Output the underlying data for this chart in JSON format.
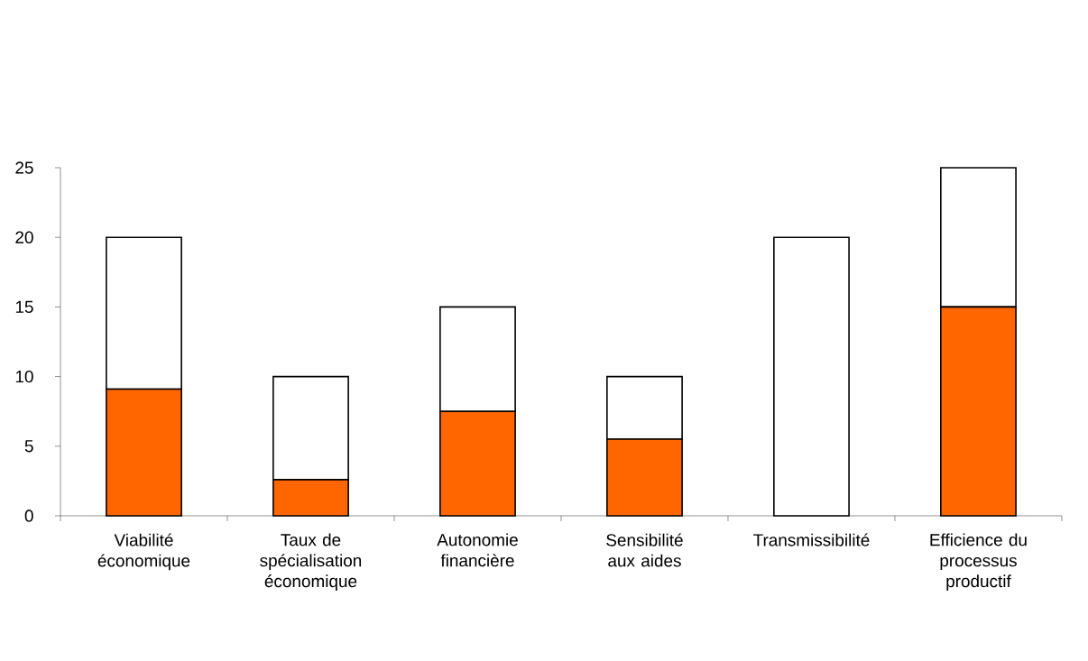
{
  "chart_data": {
    "type": "bar",
    "stacked": true,
    "categories": [
      "Viabilité économique",
      "Taux de spécialisation économique",
      "Autonomie financière",
      "Sensibilité aux aides",
      "Transmissibilité",
      "Efficience du processus productif"
    ],
    "series": [
      {
        "color": "#ff6600",
        "values": [
          9.1,
          2.6,
          7.5,
          5.5,
          0,
          15
        ]
      },
      {
        "color": "#ffffff",
        "values": [
          10.9,
          7.4,
          7.5,
          4.5,
          20,
          10
        ]
      }
    ],
    "ylim": [
      0,
      25
    ],
    "yticks": [
      0,
      5,
      10,
      15,
      20,
      25
    ],
    "grid": false
  }
}
